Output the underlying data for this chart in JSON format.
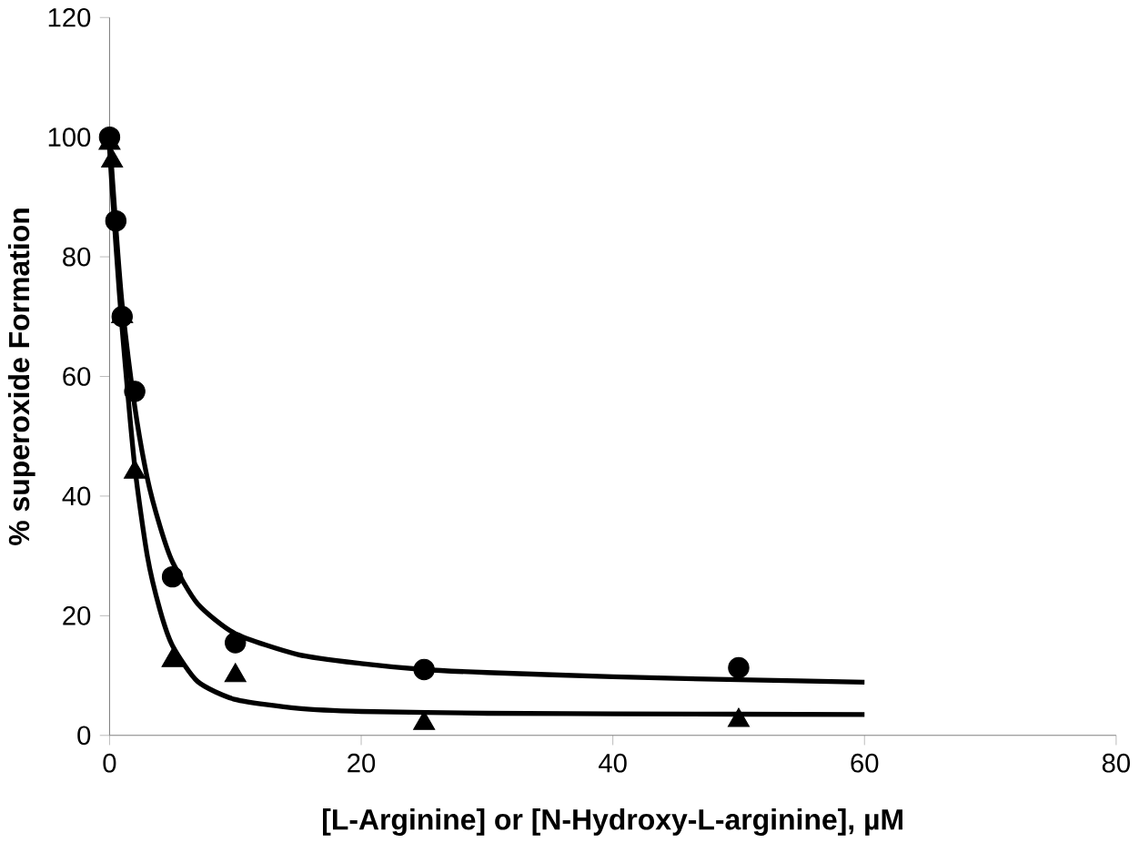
{
  "chart_data": {
    "type": "scatter",
    "xlabel": "[L-Arginine] or [N-Hydroxy-L-arginine], µM",
    "ylabel": "% superoxide Formation",
    "xlim": [
      0,
      80
    ],
    "xticks": [
      0,
      20,
      40,
      60,
      80
    ],
    "ylim": [
      0,
      120
    ],
    "yticks": [
      0,
      20,
      40,
      60,
      80,
      100,
      120
    ],
    "grid": false,
    "series": [
      {
        "type": "line",
        "color": "#000000",
        "marker": "none",
        "line_style": "solid",
        "x": [
          0,
          0.5,
          1,
          2,
          3,
          4,
          5,
          7,
          10,
          15,
          20,
          25,
          30,
          40,
          50,
          60
        ],
        "values": [
          100,
          85,
          72,
          55,
          43,
          35,
          29,
          22,
          17,
          13.5,
          12,
          11,
          10.5,
          9.8,
          9.3,
          8.9
        ]
      },
      {
        "type": "line",
        "color": "#000000",
        "marker": "none",
        "line_style": "solid",
        "x": [
          0,
          0.5,
          1,
          2,
          3,
          4,
          5,
          7,
          10,
          15,
          20,
          30,
          40,
          60
        ],
        "values": [
          98,
          82,
          68,
          45,
          30,
          21,
          15,
          9,
          6,
          4.5,
          4,
          3.7,
          3.6,
          3.5
        ]
      },
      {
        "color": "#000000",
        "marker": "circle",
        "x": [
          0,
          0.5,
          1,
          2,
          5,
          10,
          25,
          50
        ],
        "values": [
          100,
          86,
          70,
          57.5,
          26.5,
          15.5,
          11,
          11.3
        ]
      },
      {
        "color": "#000000",
        "marker": "triangle",
        "x": [
          0,
          0.2,
          1,
          2,
          5,
          10,
          25,
          50
        ],
        "values": [
          99,
          96,
          70,
          44,
          12.5,
          10,
          2,
          2.5
        ]
      }
    ]
  }
}
